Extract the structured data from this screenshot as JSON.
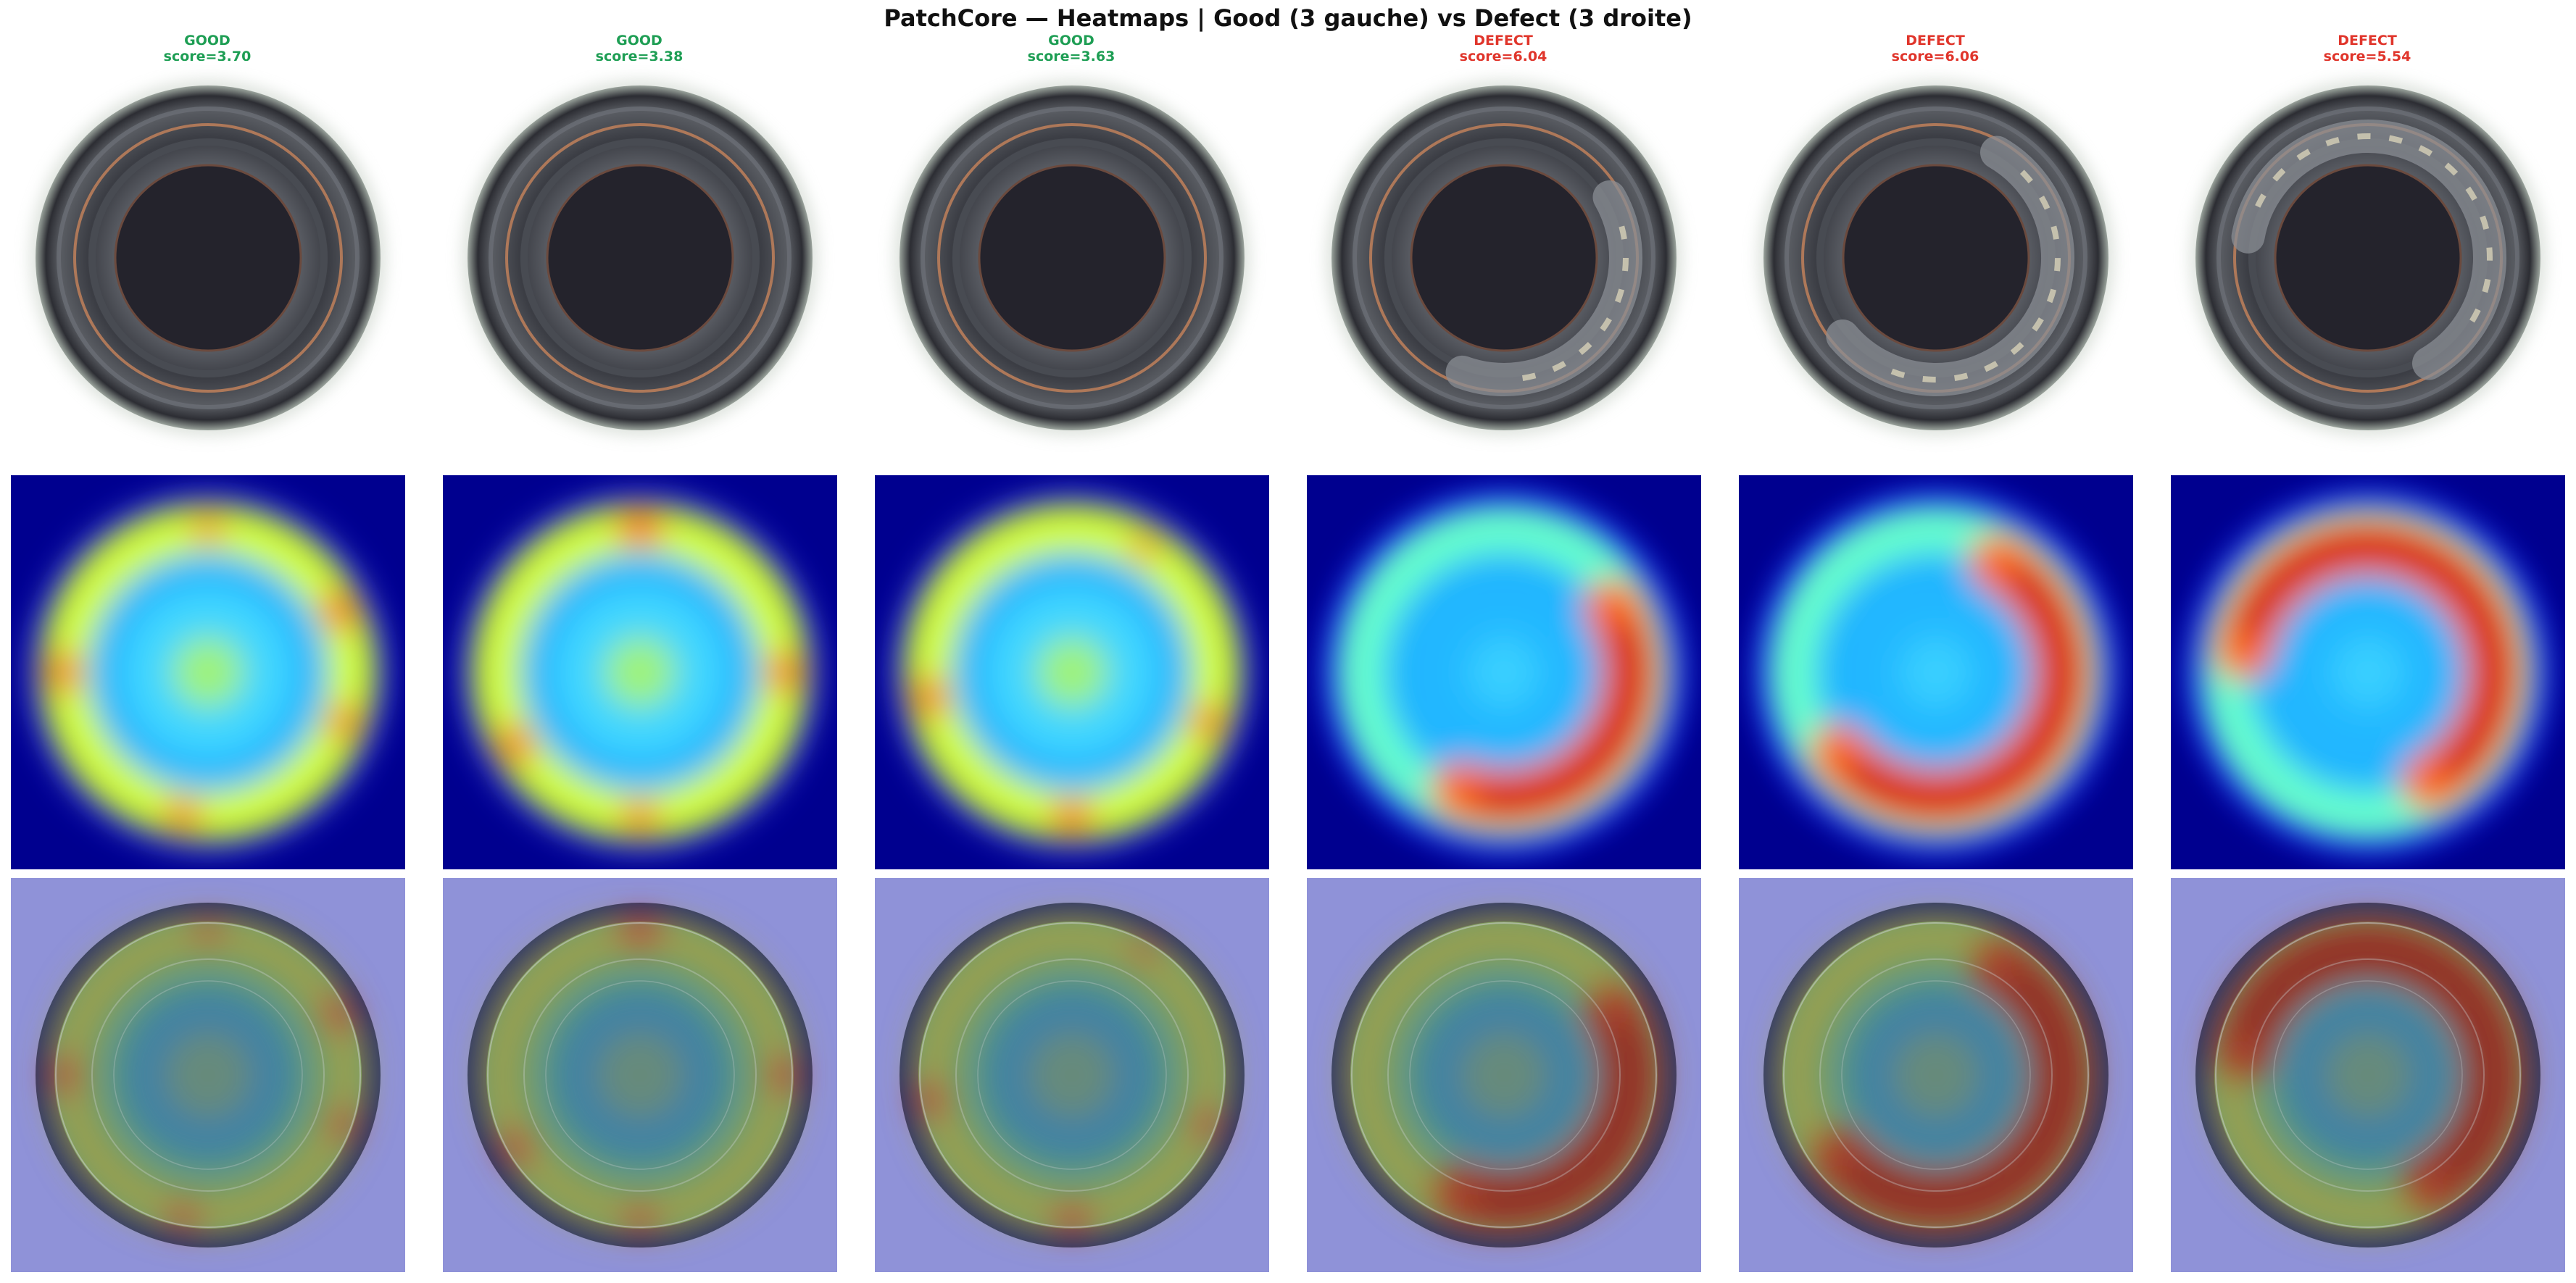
{
  "figure": {
    "title": "PatchCore — Heatmaps | Good (3 gauche) vs Defect (3 droite)"
  },
  "colors": {
    "good": "#1e9e54",
    "defect": "#e0352b"
  },
  "columns": [
    {
      "label": "GOOD",
      "score_text": "score=3.70",
      "status": "good",
      "defect_region": null
    },
    {
      "label": "GOOD",
      "score_text": "score=3.38",
      "status": "good",
      "defect_region": null
    },
    {
      "label": "GOOD",
      "score_text": "score=3.63",
      "status": "good",
      "defect_region": null
    },
    {
      "label": "DEFECT",
      "score_text": "score=6.04",
      "status": "defect",
      "defect_region": "right-lower arc"
    },
    {
      "label": "DEFECT",
      "score_text": "score=6.06",
      "status": "defect",
      "defect_region": "right and bottom arc"
    },
    {
      "label": "DEFECT",
      "score_text": "score=5.54",
      "status": "defect",
      "defect_region": "top and right arc"
    }
  ],
  "rows": [
    "original",
    "heatmap",
    "overlay"
  ]
}
